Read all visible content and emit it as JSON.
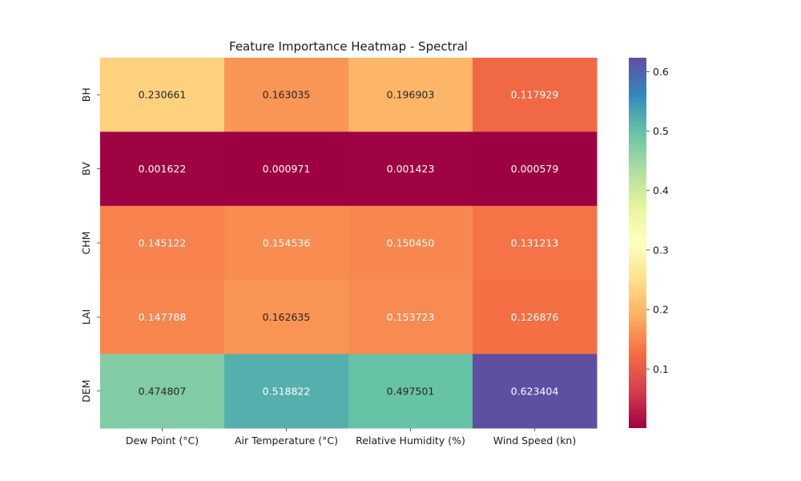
{
  "chart_data": {
    "type": "heatmap",
    "title": "Feature Importance Heatmap - Spectral",
    "colormap": "Spectral",
    "x_labels": [
      "Dew Point (°C)",
      "Air Temperature (°C)",
      "Relative Humidity (%)",
      "Wind Speed (kn)"
    ],
    "y_labels": [
      "BH",
      "BV",
      "CHM",
      "LAI",
      "DEM"
    ],
    "values": [
      [
        0.230661,
        0.163035,
        0.196903,
        0.117929
      ],
      [
        0.001622,
        0.000971,
        0.001423,
        0.000579
      ],
      [
        0.145122,
        0.154536,
        0.15045,
        0.131213
      ],
      [
        0.147788,
        0.162635,
        0.153723,
        0.126876
      ],
      [
        0.474807,
        0.518822,
        0.497501,
        0.623404
      ]
    ],
    "cell_labels": [
      [
        "0.230661",
        "0.163035",
        "0.196903",
        "0.117929"
      ],
      [
        "0.001622",
        "0.000971",
        "0.001423",
        "0.000579"
      ],
      [
        "0.145122",
        "0.154536",
        "0.150450",
        "0.131213"
      ],
      [
        "0.147788",
        "0.162635",
        "0.153723",
        "0.126876"
      ],
      [
        "0.474807",
        "0.518822",
        "0.497501",
        "0.623404"
      ]
    ],
    "vmin": 0.000579,
    "vmax": 0.623404,
    "colorbar": {
      "ticks": [
        0.1,
        0.2,
        0.3,
        0.4,
        0.5,
        0.6
      ],
      "tick_labels": [
        "0.1",
        "0.2",
        "0.3",
        "0.4",
        "0.5",
        "0.6"
      ]
    },
    "grid": false,
    "xlabel": "",
    "ylabel": ""
  }
}
